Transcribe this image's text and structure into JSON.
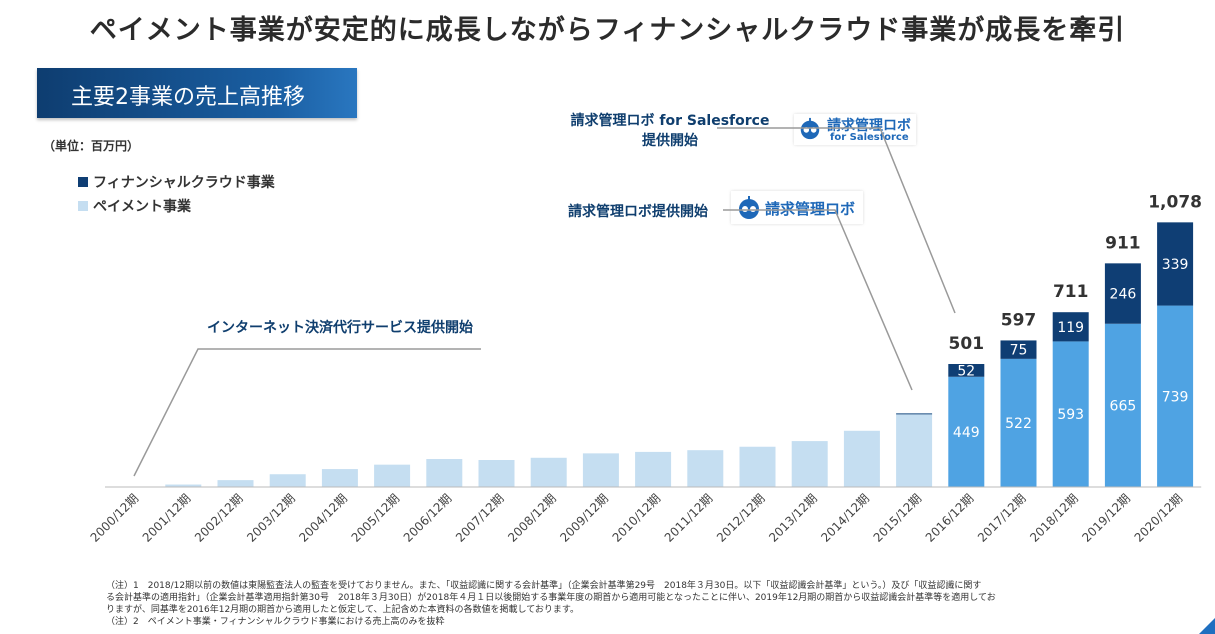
{
  "title": "ペイメント事業が安定的に成長しながらフィナンシャルクラウド事業が成長を牽引",
  "banner": "主要2事業の売上高推移",
  "unit": "（単位：百万円）",
  "legend": {
    "financial_cloud": "フィナンシャルクラウド事業",
    "payment": "ペイメント事業"
  },
  "annotations": {
    "internet": "インターネット決済代行サービス提供開始",
    "robo": "請求管理ロボ提供開始",
    "robo_sf_line1": "請求管理ロボ for Salesforce",
    "robo_sf_line2": "提供開始"
  },
  "logos": {
    "robo": "請求管理ロボ",
    "robo_sf": "請求管理ロボ",
    "robo_sf_sub": "for Salesforce"
  },
  "colors": {
    "financial_cloud": "#0f3e74",
    "payment_old": "#c5def1",
    "payment": "#4fa3e3",
    "axis": "#bbbbbb"
  },
  "chart_data": {
    "type": "bar",
    "stacked": true,
    "title": "主要2事業の売上高推移",
    "ylabel": "百万円",
    "categories": [
      "2000/12期",
      "2001/12期",
      "2002/12期",
      "2003/12期",
      "2004/12期",
      "2005/12期",
      "2006/12期",
      "2007/12期",
      "2008/12期",
      "2009/12期",
      "2010/12期",
      "2011/12期",
      "2012/12期",
      "2013/12期",
      "2014/12期",
      "2015/12期",
      "2016/12期",
      "2017/12期",
      "2018/12期",
      "2019/12期",
      "2020/12期"
    ],
    "series": [
      {
        "name": "ペイメント事業",
        "values": [
          0,
          10,
          28,
          52,
          73,
          91,
          114,
          110,
          119,
          137,
          143,
          150,
          164,
          187,
          229,
          295,
          449,
          522,
          593,
          665,
          739
        ]
      },
      {
        "name": "フィナンシャルクラウド事業",
        "values": [
          0,
          0,
          0,
          0,
          0,
          0,
          0,
          0,
          0,
          0,
          0,
          0,
          0,
          0,
          0,
          6,
          52,
          75,
          119,
          246,
          339
        ]
      }
    ],
    "labeled_from_index": 16,
    "totals": [
      "501",
      "597",
      "711",
      "911",
      "1,078"
    ],
    "ylim": [
      0,
      1100
    ]
  },
  "notes": [
    "（注）1　2018/12期以前の数値は東陽監査法人の監査を受けておりません。また、「収益認識に関する会計基準」（企業会計基準第29号　2018年３月30日。以下「収益認識会計基準」という。）及び「収益認識に関す",
    "る会計基準の適用指針」（企業会計基準適用指針第30号　2018年３月30日）が2018年４月１日以後開始する事業年度の期首から適用可能となったことに伴い、2019年12月期の期首から収益認識会計基準等を適用してお",
    "りますが、同基準を2016年12月期の期首から適用したと仮定して、上記含めた本資料の各数値を掲載しております。",
    "（注）2　ペイメント事業・フィナンシャルクラウド事業における売上高のみを抜粋"
  ]
}
